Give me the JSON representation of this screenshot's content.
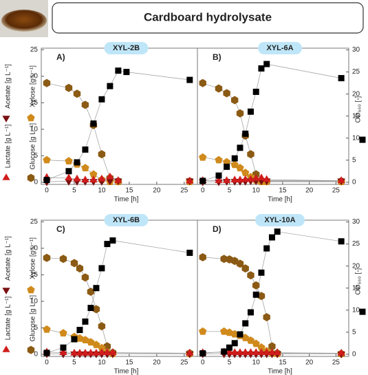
{
  "header": {
    "title": "Cardboard hydrolysate"
  },
  "chart_data": [
    {
      "type": "line",
      "title": "XYL-2B",
      "annotation": "A)",
      "xlabel": "Time [h]",
      "x": [
        0,
        4,
        5.5,
        7,
        8.5,
        10,
        11.5,
        13,
        14.5,
        26
      ],
      "xlim": [
        -1,
        27.4
      ],
      "xticks": [
        0,
        5,
        10,
        15,
        20,
        25
      ],
      "ylim": [
        -0.4,
        25.3
      ],
      "yticks": [
        0,
        5,
        10,
        15,
        20,
        25
      ],
      "y2lim": [
        -0.5,
        30.4
      ],
      "series": [
        {
          "name": "Glucose [g L⁻¹]",
          "color": "#8b5a14",
          "marker": "hexagon",
          "values": [
            18.7,
            17.8,
            16.7,
            14.6,
            10.8,
            5.3,
            0.8,
            0.2,
            null,
            0.2
          ]
        },
        {
          "name": "Xylose [g L⁻¹]",
          "color": "#d08a1c",
          "marker": "pentagon",
          "values": [
            4.2,
            4,
            3.4,
            2.7,
            1.5,
            0.5,
            0.1,
            0.1,
            null,
            0.1
          ]
        },
        {
          "name": "Acetate [g L⁻¹]",
          "color": "#7a1010",
          "marker": "triangle-down",
          "values": [
            0.1,
            0.2,
            0.2,
            0.2,
            0.2,
            0.2,
            0.3,
            0.3,
            null,
            0.3
          ]
        },
        {
          "name": "Lactate [g L⁻¹]",
          "color": "#d01c1c",
          "marker": "triangle-up",
          "values": [
            0.9,
            0.8,
            0.6,
            0.4,
            0.4,
            0.6,
            1.0,
            0.3,
            null,
            0.2
          ]
        },
        {
          "color": "#000000",
          "marker": "square",
          "axis": "y2",
          "values": [
            0.5,
            2.5,
            4.5,
            7.4,
            13.3,
            18.8,
            21.8,
            25.3,
            25,
            23.2
          ]
        }
      ]
    },
    {
      "type": "line",
      "title": "XYL-6A",
      "annotation": "B)",
      "xlabel": "Time [h]",
      "x": [
        0,
        3,
        4.5,
        6,
        7,
        8,
        9,
        10,
        11,
        12,
        26
      ],
      "xlim": [
        -1,
        27.4
      ],
      "xticks": [
        0,
        5,
        10,
        15,
        20,
        25
      ],
      "ylim": [
        -0.4,
        25.3
      ],
      "y2lim": [
        -0.5,
        30.4
      ],
      "y2ticks": [
        0,
        5,
        10,
        15,
        20,
        25,
        30
      ],
      "series": [
        {
          "color": "#8b5a14",
          "marker": "hexagon",
          "values": [
            18.7,
            17.7,
            16.8,
            15.5,
            13,
            8.8,
            5.3,
            1.5,
            0.3,
            0.2,
            0.2
          ]
        },
        {
          "color": "#d08a1c",
          "marker": "pentagon",
          "values": [
            4.7,
            4.2,
            3.8,
            3.3,
            2.7,
            1.8,
            1,
            0.4,
            0.1,
            0.1,
            0.1
          ]
        },
        {
          "color": "#7a1010",
          "marker": "triangle-down",
          "values": [
            0.1,
            0.1,
            0.2,
            0.2,
            0.2,
            0.2,
            0.3,
            0.3,
            0.3,
            0.3,
            0.3
          ]
        },
        {
          "color": "#d01c1c",
          "marker": "triangle-up",
          "values": [
            0.3,
            0.3,
            0.3,
            0.4,
            0.4,
            0.5,
            0.5,
            0.7,
            0.8,
            0.5,
            0.3
          ]
        },
        {
          "name": "OD₆₆₀ [-]",
          "color": "#000000",
          "marker": "square",
          "axis": "y2",
          "values": [
            0.3,
            1.5,
            3.5,
            5.4,
            7.8,
            11,
            16,
            20.5,
            25.8,
            26.8,
            23.6
          ]
        }
      ]
    },
    {
      "type": "line",
      "title": "XYL-6B",
      "annotation": "C)",
      "xlabel": "Time [h]",
      "x": [
        0,
        3,
        5,
        6,
        7,
        8,
        9,
        10,
        11,
        12,
        26
      ],
      "xlim": [
        -1,
        27.4
      ],
      "xticks": [
        0,
        5,
        10,
        15,
        20,
        25
      ],
      "ylim": [
        -0.4,
        25.3
      ],
      "yticks": [
        0,
        5,
        10,
        15,
        20,
        25
      ],
      "y2lim": [
        -0.5,
        30.4
      ],
      "series": [
        {
          "name": "Glucose [g L⁻¹]",
          "color": "#8b5a14",
          "marker": "hexagon",
          "values": [
            18.2,
            18,
            17.2,
            16.2,
            14.5,
            11.8,
            8.5,
            5.3,
            1.5,
            0.3,
            0.2
          ]
        },
        {
          "name": "Xylose [g L⁻¹]",
          "color": "#d08a1c",
          "marker": "pentagon",
          "values": [
            4.7,
            4,
            3.3,
            3,
            2.7,
            2.3,
            1.8,
            1.2,
            0.4,
            0.1,
            0.1
          ]
        },
        {
          "name": "Acetate [g L⁻¹]",
          "color": "#7a1010",
          "marker": "triangle-down",
          "values": [
            0.1,
            0.1,
            0.1,
            0.1,
            0.1,
            0.1,
            0.1,
            0.1,
            0.1,
            0.1,
            0.1
          ]
        },
        {
          "name": "Lactate [g L⁻¹]",
          "color": "#d01c1c",
          "marker": "triangle-up",
          "values": [
            0.4,
            0.3,
            0.2,
            0.2,
            0.2,
            0.2,
            0.2,
            0.3,
            0.3,
            0.3,
            0.2
          ]
        },
        {
          "color": "#000000",
          "marker": "square",
          "axis": "y2",
          "values": [
            0.3,
            1.5,
            3.4,
            5.5,
            7.4,
            10.5,
            15,
            19.5,
            25,
            25.8,
            23
          ]
        }
      ]
    },
    {
      "type": "line",
      "title": "XYL-10A",
      "annotation": "D)",
      "xlabel": "Time [h]",
      "x": [
        0,
        4,
        5,
        6,
        7,
        8,
        9,
        10,
        11,
        12,
        13,
        14,
        26
      ],
      "xlim": [
        -1,
        27.4
      ],
      "xticks": [
        0,
        5,
        10,
        15,
        20,
        25
      ],
      "ylim": [
        -0.4,
        25.3
      ],
      "y2lim": [
        -0.5,
        30.4
      ],
      "y2ticks": [
        0,
        5,
        10,
        15,
        20,
        25,
        30
      ],
      "series": [
        {
          "color": "#8b5a14",
          "marker": "hexagon",
          "values": [
            18.3,
            18,
            17.9,
            17.6,
            17.1,
            16.2,
            14.9,
            13,
            11,
            7,
            1.5,
            0.2,
            0.1
          ]
        },
        {
          "color": "#d08a1c",
          "marker": "pentagon",
          "values": [
            4.3,
            4.3,
            4.1,
            3.8,
            3.5,
            3.1,
            2.6,
            2,
            1.3,
            0.6,
            0.2,
            0.1,
            0.1
          ]
        },
        {
          "color": "#7a1010",
          "marker": "triangle-down",
          "values": [
            0.1,
            0.1,
            0.1,
            0.1,
            0.1,
            0.1,
            0.1,
            0.1,
            0.1,
            0.1,
            0.1,
            0.1,
            0.1
          ]
        },
        {
          "color": "#d01c1c",
          "marker": "triangle-up",
          "values": [
            0.3,
            0.4,
            0.4,
            0.3,
            0.3,
            0.3,
            0.3,
            0.3,
            0.3,
            0.3,
            0.3,
            0.3,
            0.2
          ]
        },
        {
          "name": "OD₆₆₀ [-]",
          "color": "#000000",
          "marker": "square",
          "axis": "y2",
          "values": [
            0.2,
            0.6,
            1.5,
            2.5,
            4.5,
            7,
            9.5,
            13.5,
            18.5,
            24,
            26.5,
            27.8,
            25.6
          ]
        }
      ]
    }
  ]
}
